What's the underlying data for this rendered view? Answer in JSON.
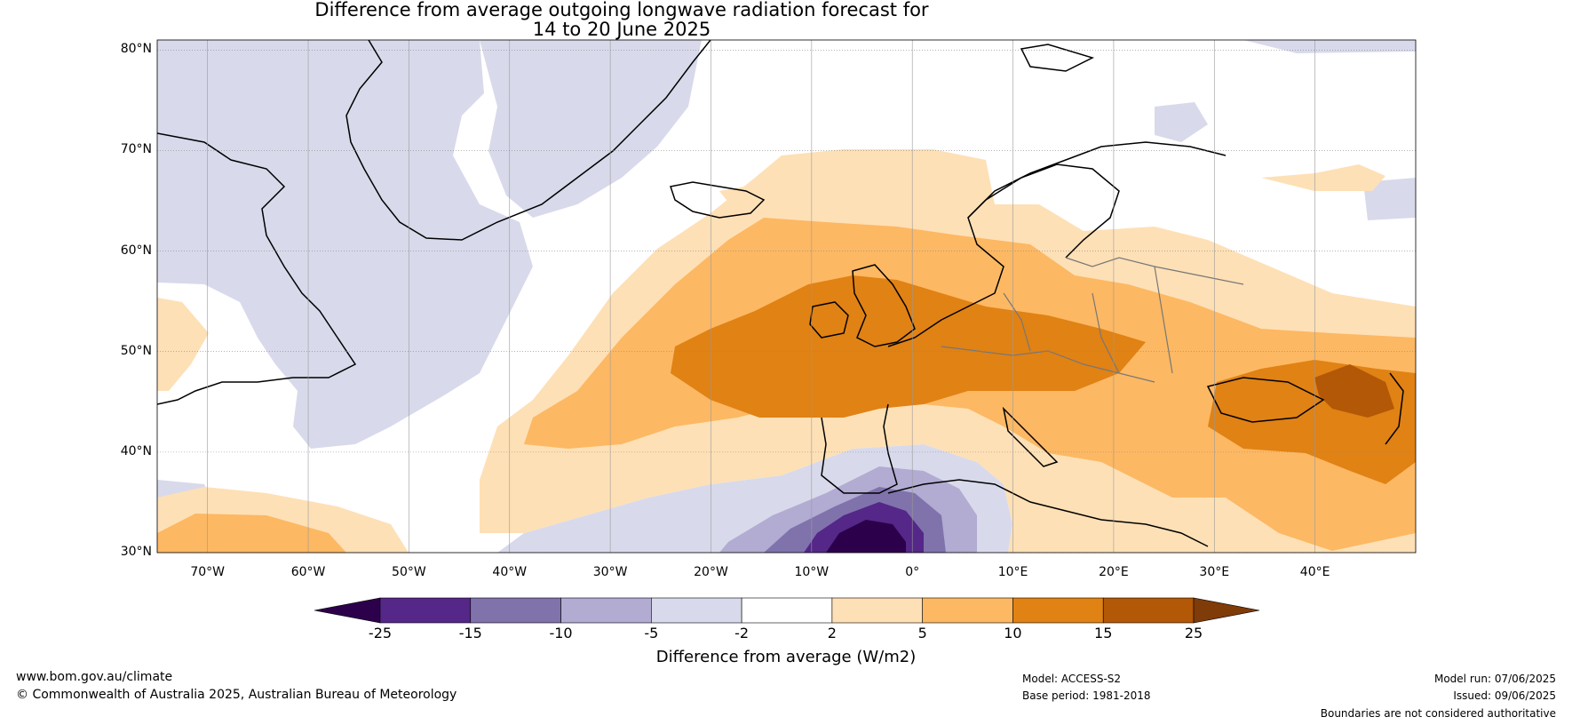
{
  "title": {
    "line1": "Difference from average outgoing longwave radiation forecast for",
    "line2": "14 to 20 June 2025"
  },
  "map": {
    "lat_labels": [
      "80°N",
      "70°N",
      "60°N",
      "50°N",
      "40°N",
      "30°N"
    ],
    "lon_labels": [
      "70°W",
      "60°W",
      "50°W",
      "40°W",
      "30°W",
      "20°W",
      "10°W",
      "0°",
      "10°E",
      "20°E",
      "30°E",
      "40°E"
    ],
    "extent": {
      "lon": [
        -75,
        50
      ],
      "lat": [
        30,
        81
      ]
    }
  },
  "colorbar": {
    "title": "Difference from average (W/m2)",
    "tick_labels": [
      "-25",
      "-15",
      "-10",
      "-5",
      "-2",
      "2",
      "5",
      "10",
      "15",
      "25"
    ],
    "colors": [
      "#2d004b",
      "#542788",
      "#8073ac",
      "#b2abd2",
      "#d8daeb",
      "#ffffff",
      "#fee0b6",
      "#fdb863",
      "#e08214",
      "#b35806",
      "#7f3b08"
    ]
  },
  "footer": {
    "url": "www.bom.gov.au/climate",
    "copyright": "© Commonwealth of Australia 2025, Australian Bureau of Meteorology",
    "model": "Model: ACCESS-S2",
    "base_period": "Base period: 1981-2018",
    "model_run": "Model run: 07/06/2025",
    "issued": "Issued: 09/06/2025",
    "disclaimer": "Boundaries are not considered authoritative"
  }
}
